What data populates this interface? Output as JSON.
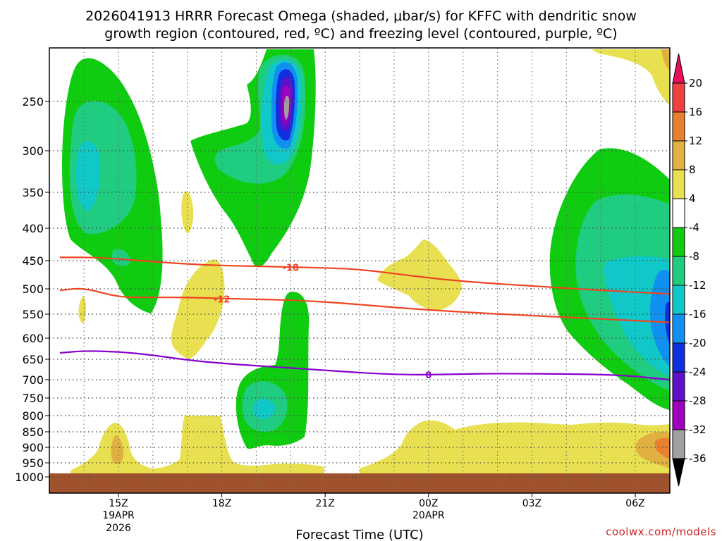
{
  "chart_data": {
    "type": "contour",
    "title_line1": "2026041913 HRRR Forecast Omega (shaded, μbar/s) for KFFC with dendritic snow",
    "title_line2": "growth region (contoured, red, ºC) and freezing level (contoured, purple, ºC)",
    "xlabel": "Forecast Time (UTC)",
    "credit": "coolwx.com/models",
    "pressure_levels": [
      "250",
      "300",
      "350",
      "400",
      "450",
      "500",
      "550",
      "600",
      "650",
      "700",
      "750",
      "800",
      "850",
      "900",
      "950",
      "1000"
    ],
    "x_ticks": [
      {
        "label": "15Z",
        "sub1": "19APR",
        "sub2": "2026",
        "hour": 2
      },
      {
        "label": "18Z",
        "sub1": "",
        "sub2": "",
        "hour": 5
      },
      {
        "label": "21Z",
        "sub1": "",
        "sub2": "",
        "hour": 8
      },
      {
        "label": "00Z",
        "sub1": "20APR",
        "sub2": "",
        "hour": 11
      },
      {
        "label": "03Z",
        "sub1": "",
        "sub2": "",
        "hour": 14
      },
      {
        "label": "06Z",
        "sub1": "",
        "sub2": "",
        "hour": 17
      }
    ],
    "x_range_hours": [
      0.3,
      18.0
    ],
    "colorbar": {
      "labels": [
        "20",
        "16",
        "12",
        "8",
        "4",
        "-4",
        "-8",
        "-12",
        "-16",
        "-20",
        "-24",
        "-28",
        "-32",
        "-36"
      ],
      "colors": [
        "#e8105a",
        "#f04040",
        "#e88030",
        "#e0b040",
        "#e8e050",
        "#ffffff",
        "#10cc10",
        "#20cc80",
        "#10c8c8",
        "#1090f0",
        "#1030e0",
        "#6010c8",
        "#a000c0",
        "#a0a0a0",
        "#000000"
      ]
    },
    "contours": [
      {
        "label": "-18",
        "color": "#ee4422",
        "points": [
          [
            0.3,
            445
          ],
          [
            1.5,
            445
          ],
          [
            3,
            452
          ],
          [
            4.5,
            458
          ],
          [
            6,
            460
          ],
          [
            7.5,
            462
          ],
          [
            9,
            465
          ],
          [
            10.5,
            477
          ],
          [
            12,
            487
          ],
          [
            14,
            495
          ],
          [
            16,
            503
          ],
          [
            18,
            510
          ]
        ]
      },
      {
        "label": "-12",
        "color": "#ee4422",
        "points": [
          [
            0.3,
            503
          ],
          [
            1,
            498
          ],
          [
            2,
            517
          ],
          [
            3,
            517
          ],
          [
            4,
            517
          ],
          [
            5.5,
            520
          ],
          [
            7,
            522
          ],
          [
            8.5,
            528
          ],
          [
            10,
            537
          ],
          [
            12,
            546
          ],
          [
            14,
            553
          ],
          [
            16,
            560
          ],
          [
            18,
            567
          ]
        ]
      },
      {
        "label": "0",
        "color": "#8800cc",
        "points": [
          [
            0.3,
            635
          ],
          [
            1,
            630
          ],
          [
            2,
            632
          ],
          [
            3,
            640
          ],
          [
            4,
            652
          ],
          [
            5,
            660
          ],
          [
            6,
            666
          ],
          [
            7.5,
            674
          ],
          [
            9,
            683
          ],
          [
            10,
            687
          ],
          [
            11,
            688
          ],
          [
            12,
            686
          ],
          [
            13,
            685
          ],
          [
            15,
            686
          ],
          [
            16.5,
            688
          ],
          [
            18,
            700
          ]
        ]
      }
    ],
    "shaded_fields": [
      "green updraft column near 15Z from 250 to 550 hPa",
      "strong updraft core near 20Z, minimum below -32 near 260 hPa",
      "updraft near 19Z to 20Z, 600 to 850 hPa",
      "updraft after 04Z, 300 to 750 hPa",
      "weak subsidence near surface 850 to 1000 hPa"
    ]
  }
}
